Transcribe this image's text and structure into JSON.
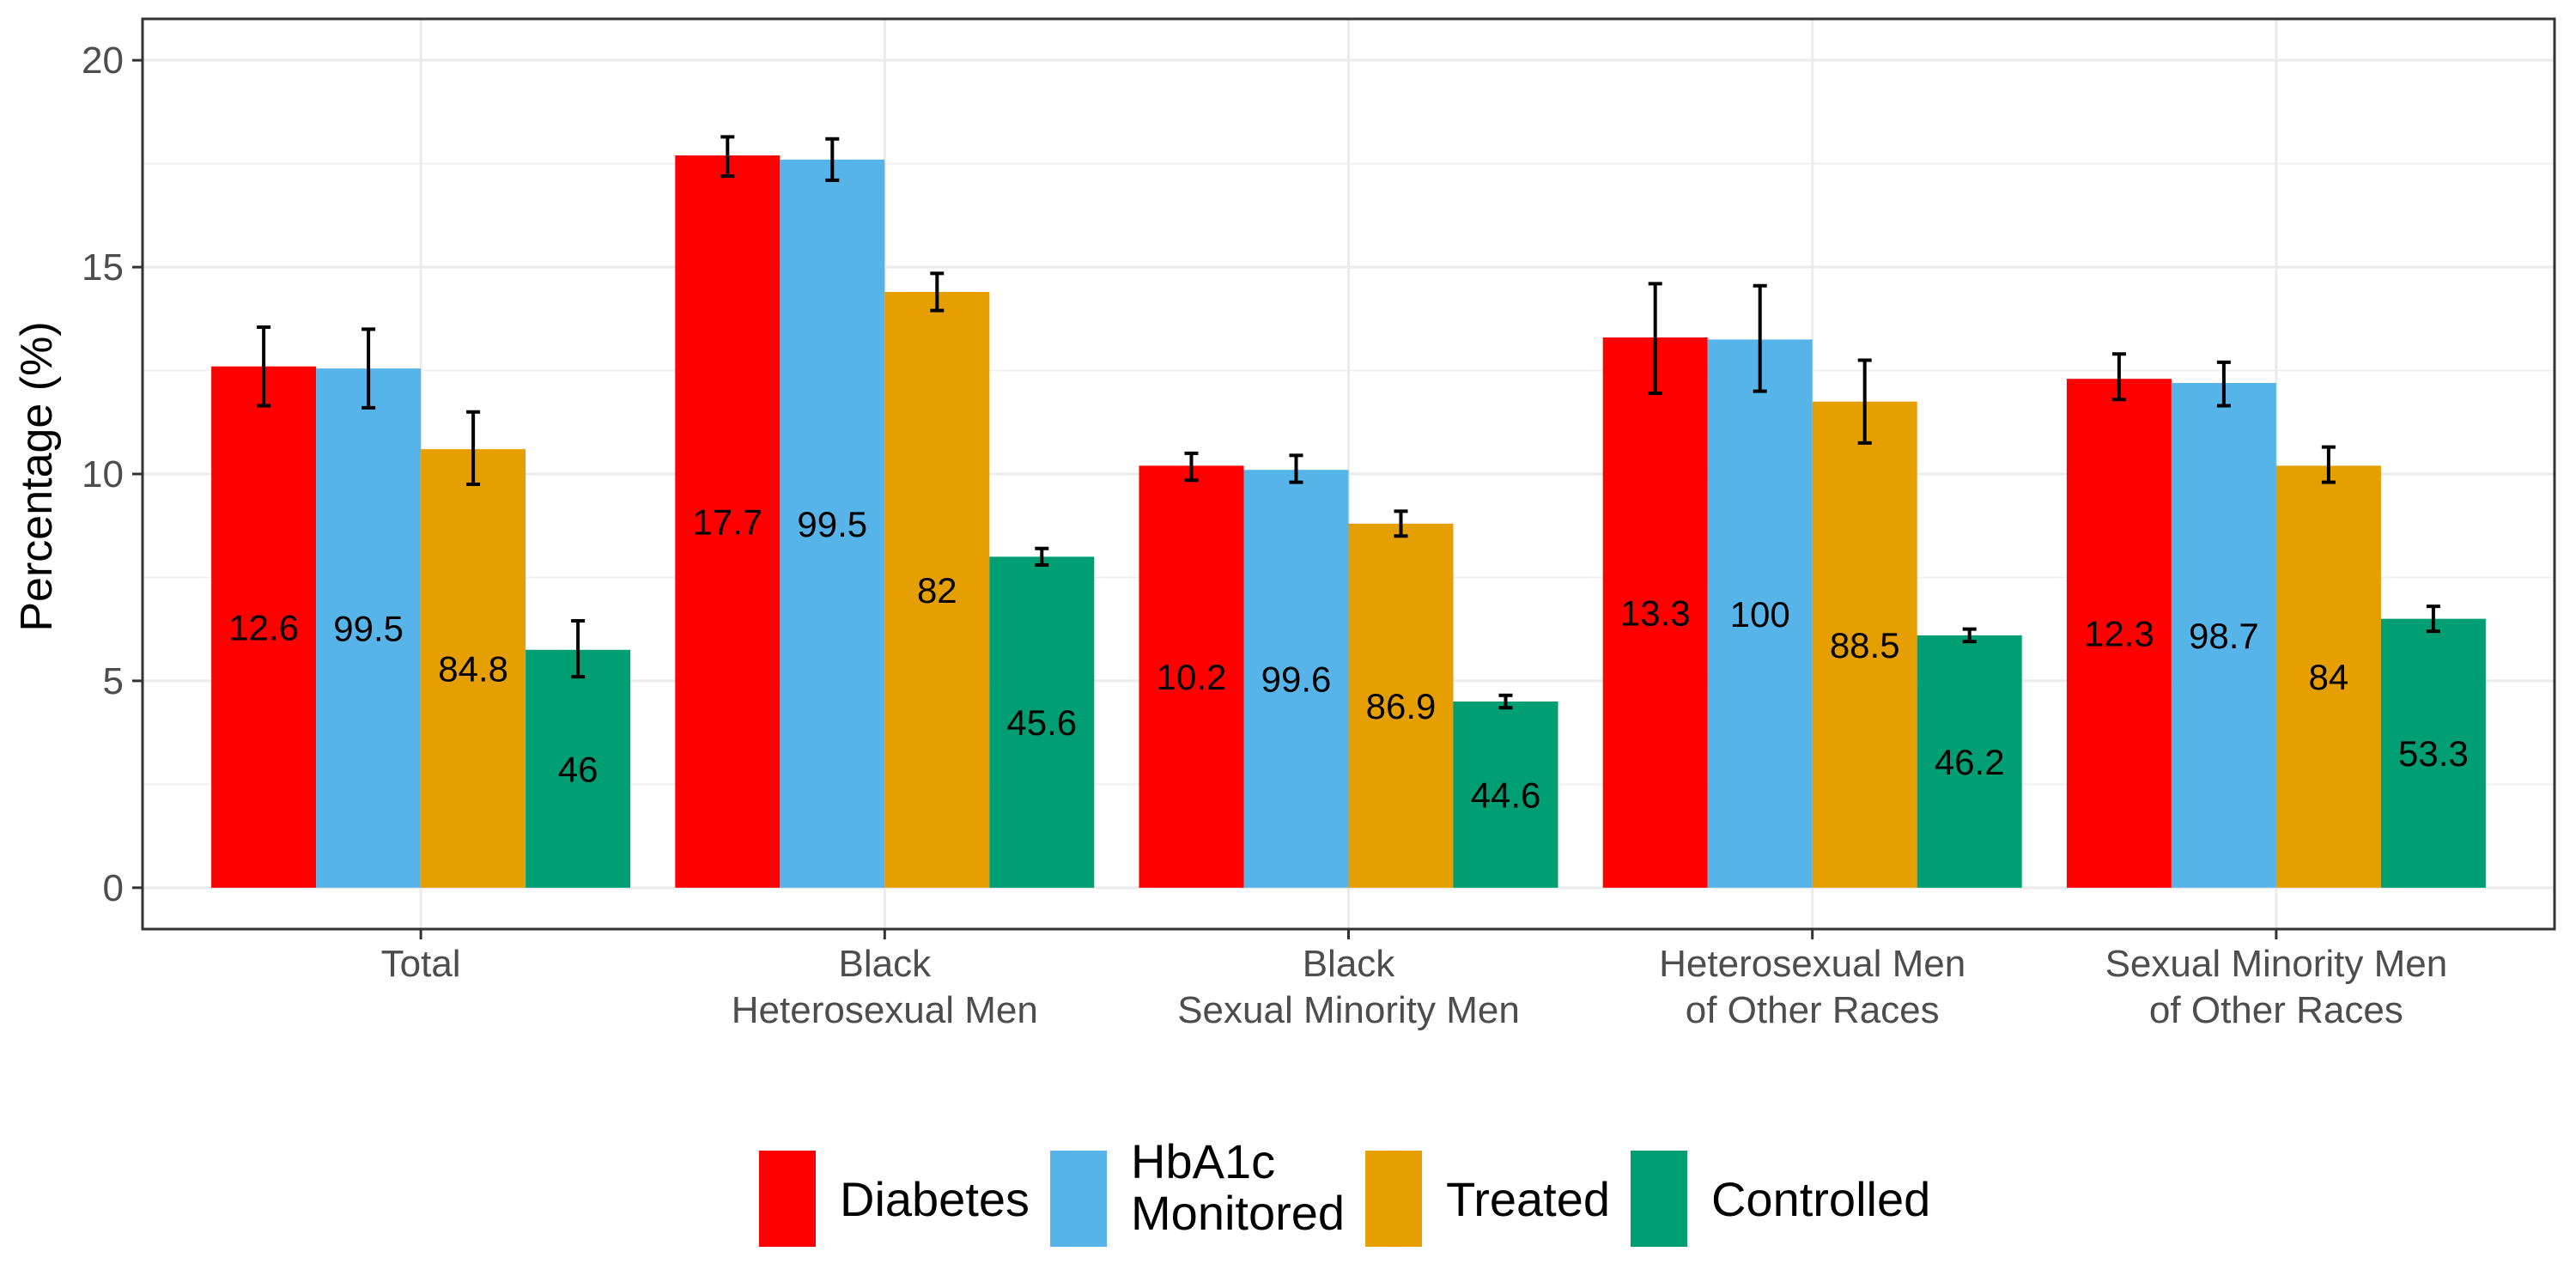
{
  "chart_data": {
    "type": "bar",
    "title": "",
    "xlabel": "",
    "ylabel": "Percentage (%)",
    "ylim": [
      -1,
      21
    ],
    "yticks": [
      0,
      5,
      10,
      15,
      20
    ],
    "grid": true,
    "legend_position": "bottom",
    "categories": [
      [
        "Total"
      ],
      [
        "Black",
        "Heterosexual Men"
      ],
      [
        "Black",
        "Sexual Minority Men"
      ],
      [
        "Heterosexual Men",
        "of Other Races"
      ],
      [
        "Sexual Minority Men",
        "of Other Races"
      ]
    ],
    "series": [
      {
        "name": [
          "Diabetes"
        ],
        "color": "#ff0000",
        "values": [
          12.6,
          17.7,
          10.2,
          13.3,
          12.3
        ],
        "error_low": [
          11.65,
          17.2,
          9.85,
          11.95,
          11.8
        ],
        "error_high": [
          13.55,
          18.15,
          10.5,
          14.6,
          12.9
        ],
        "labels": [
          "12.6",
          "17.7",
          "10.2",
          "13.3",
          "12.3"
        ],
        "label_y": [
          6.3,
          8.85,
          5.1,
          6.65,
          6.15
        ]
      },
      {
        "name": [
          "HbA1c",
          "Monitored"
        ],
        "color": "#56b4e9",
        "values": [
          12.55,
          17.6,
          10.1,
          13.25,
          12.2
        ],
        "error_low": [
          11.6,
          17.1,
          9.8,
          12.0,
          11.65
        ],
        "error_high": [
          13.5,
          18.1,
          10.45,
          14.55,
          12.7
        ],
        "labels": [
          "99.5",
          "99.5",
          "99.6",
          "100",
          "98.7"
        ],
        "label_y": [
          6.27,
          8.8,
          5.05,
          6.62,
          6.1
        ]
      },
      {
        "name": [
          "Treated"
        ],
        "color": "#e69f00",
        "values": [
          10.6,
          14.4,
          8.8,
          11.75,
          10.2
        ],
        "error_low": [
          9.75,
          13.95,
          8.5,
          10.75,
          9.8
        ],
        "error_high": [
          11.5,
          14.85,
          9.1,
          12.75,
          10.65
        ],
        "labels": [
          "84.8",
          "82",
          "86.9",
          "88.5",
          "84"
        ],
        "label_y": [
          5.3,
          7.2,
          4.4,
          5.87,
          5.1
        ]
      },
      {
        "name": [
          "Controlled"
        ],
        "color": "#009e73",
        "values": [
          5.75,
          8.0,
          4.5,
          6.1,
          6.5
        ],
        "error_low": [
          5.1,
          7.8,
          4.35,
          5.95,
          6.2
        ],
        "error_high": [
          6.45,
          8.2,
          4.65,
          6.25,
          6.8
        ],
        "labels": [
          "46",
          "45.6",
          "44.6",
          "46.2",
          "53.3"
        ],
        "label_y": [
          2.87,
          4.0,
          2.25,
          3.05,
          3.25
        ]
      }
    ]
  }
}
